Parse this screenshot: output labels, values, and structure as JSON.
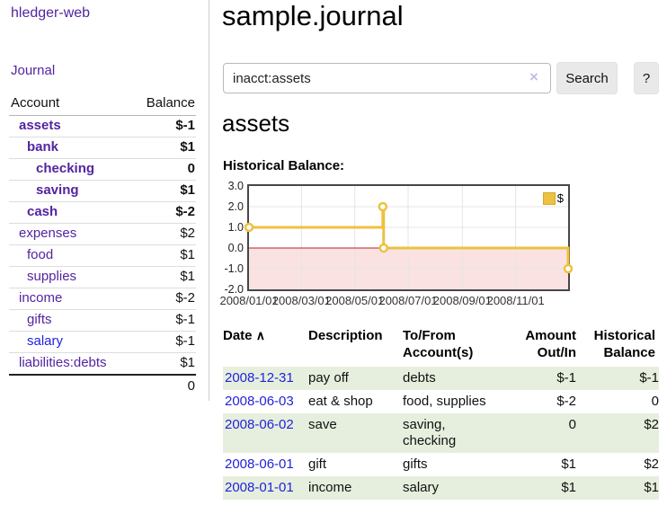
{
  "app_title": "hledger-web",
  "sidebar": {
    "journal_link": "Journal",
    "accounts_table": {
      "col_account": "Account",
      "col_balance": "Balance",
      "rows": [
        {
          "name": "assets",
          "balance": "$-1"
        },
        {
          "name": "bank",
          "balance": "$1"
        },
        {
          "name": "checking",
          "balance": "0"
        },
        {
          "name": "saving",
          "balance": "$1"
        },
        {
          "name": "cash",
          "balance": "$-2"
        },
        {
          "name": "expenses",
          "balance": "$2"
        },
        {
          "name": "food",
          "balance": "$1"
        },
        {
          "name": "supplies",
          "balance": "$1"
        },
        {
          "name": "income",
          "balance": "$-2"
        },
        {
          "name": "gifts",
          "balance": "$-1"
        },
        {
          "name": "salary",
          "balance": "$-1"
        },
        {
          "name": "liabilities:debts",
          "balance": "$1"
        }
      ],
      "total": "0"
    }
  },
  "header": {
    "title": "sample.journal"
  },
  "search": {
    "value": "inacct:assets",
    "clear_icon": "×",
    "search_button": "Search",
    "help_button": "?"
  },
  "account_view": {
    "title": "assets",
    "chart_label": "Historical Balance:"
  },
  "chart_data": {
    "type": "line",
    "step": true,
    "title": "Historical Balance",
    "series": [
      {
        "name": "$",
        "color": "#EDC240",
        "points": [
          [
            "2008-01-01",
            1
          ],
          [
            "2008-06-02",
            2
          ],
          [
            "2008-06-03",
            0
          ],
          [
            "2008-12-31",
            -1
          ]
        ]
      }
    ],
    "x_range": [
      "2008-01-01",
      "2008-12-31"
    ],
    "x_ticks": [
      {
        "date": "2008-01-01",
        "label": "2008/01/01"
      },
      {
        "date": "2008-03-01",
        "label": "2008/03/01"
      },
      {
        "date": "2008-05-01",
        "label": "2008/05/01"
      },
      {
        "date": "2008-07-01",
        "label": "2008/07/01"
      },
      {
        "date": "2008-09-01",
        "label": "2008/09/01"
      },
      {
        "date": "2008-11-01",
        "label": "2008/11/01"
      }
    ],
    "y_ticks": [
      {
        "value": 3,
        "label": "3.0"
      },
      {
        "value": 2,
        "label": "2.0"
      },
      {
        "value": 1,
        "label": "1.0"
      },
      {
        "value": 0,
        "label": "0.0"
      },
      {
        "value": -1,
        "label": "-1.0"
      },
      {
        "value": -2,
        "label": "-2.0"
      }
    ],
    "ylim": [
      -2,
      3
    ],
    "grid": true,
    "gridline_color": "#e4e4e4",
    "zero_line_color": "#bb2222",
    "negative_fill": "rgba(230,60,60,0.15)",
    "legend": {
      "label": "$",
      "position": "top-right"
    }
  },
  "register": {
    "headers": {
      "date": "Date",
      "sort_indicator": "∧",
      "description": "Description",
      "account_l1": "To/From",
      "account_l2": "Account(s)",
      "amount_l1": "Amount",
      "amount_l2": "Out/In",
      "balance_l1": "Historical",
      "balance_l2": "Balance"
    },
    "rows": [
      {
        "date": "2008-12-31",
        "description": "pay off",
        "accounts": "debts",
        "amount": "$-1",
        "balance": "$-1"
      },
      {
        "date": "2008-06-03",
        "description": "eat & shop",
        "accounts": "food, supplies",
        "amount": "$-2",
        "balance": "0"
      },
      {
        "date": "2008-06-02",
        "description": "save",
        "accounts": "saving, checking",
        "amount": "0",
        "balance": "$2"
      },
      {
        "date": "2008-06-01",
        "description": "gift",
        "accounts": "gifts",
        "amount": "$1",
        "balance": "$2"
      },
      {
        "date": "2008-01-01",
        "description": "income",
        "accounts": "salary",
        "amount": "$1",
        "balance": "$1"
      }
    ]
  }
}
